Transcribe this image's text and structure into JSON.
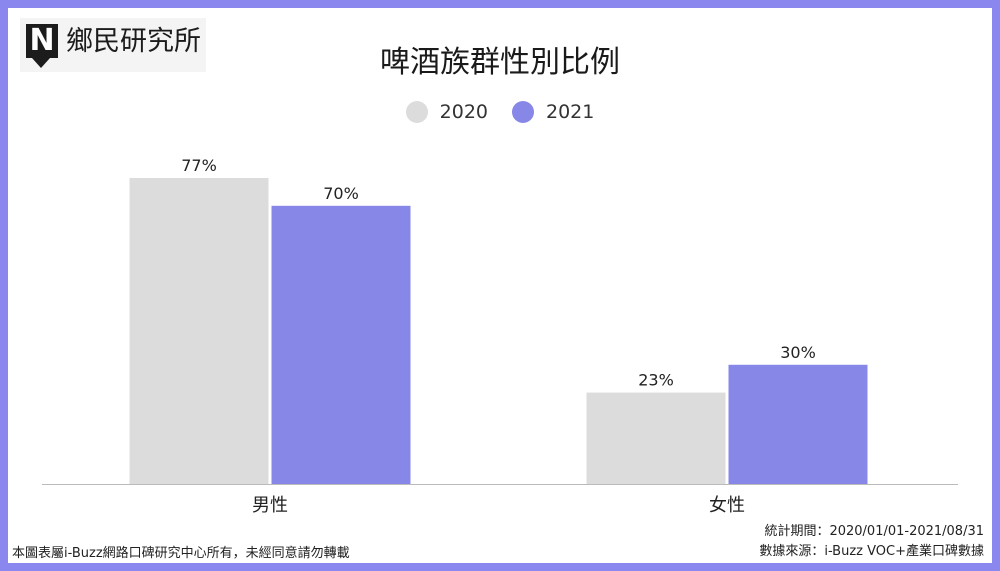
{
  "logo": {
    "mark": "N",
    "text": "鄉民研究所"
  },
  "colors": {
    "series_2020": "#dcdcdc",
    "series_2021": "#8787e8",
    "frame": "#8a88ee",
    "axis": "#bbbbbb"
  },
  "chart_data": {
    "type": "bar",
    "title": "啤酒族群性別比例",
    "categories": [
      "男性",
      "女性"
    ],
    "series": [
      {
        "name": "2020",
        "values": [
          77,
          23
        ],
        "labels": [
          "77%",
          "23%"
        ]
      },
      {
        "name": "2021",
        "values": [
          70,
          30
        ],
        "labels": [
          "70%",
          "30%"
        ]
      }
    ],
    "ylim": [
      0,
      77
    ],
    "xlabel": "",
    "ylabel": "",
    "grid": false,
    "legend_position": "top-center"
  },
  "footer": {
    "copyright": "本圖表屬i-Buzz網路口碑研究中心所有，未經同意請勿轉載",
    "period": "統計期間：2020/01/01-2021/08/31",
    "source": "數據來源：i-Buzz VOC+產業口碑數據"
  }
}
